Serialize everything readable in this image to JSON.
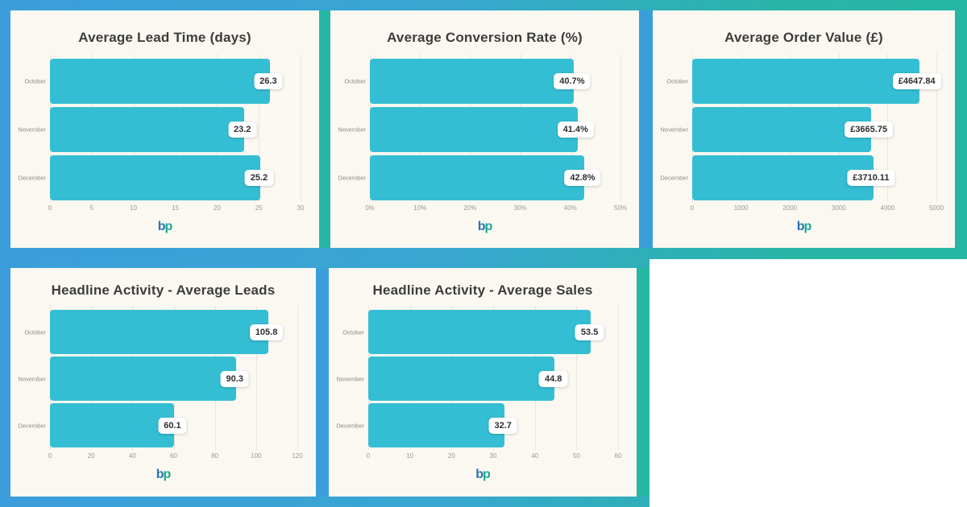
{
  "page": {
    "background_left_color": "#3b9edb",
    "background_right_color": "#26b7a4",
    "empty_cell_color": "#ffffff",
    "card_background": "#faf8f1"
  },
  "logo": {
    "letter_b": "b",
    "letter_p": "p",
    "color_b": "#2a72b8",
    "color_p": "#16ac8c"
  },
  "colors": {
    "bar": "#34bed3",
    "title": "#3d3d3d",
    "gridline": "#e9e6de",
    "tick_label": "#9b988f",
    "category_label": "#8b8b86",
    "value_pill_bg": "#ffffff",
    "value_pill_text": "#2e2e2e"
  },
  "chart_data": [
    {
      "id": "lead-time",
      "type": "bar",
      "orientation": "horizontal",
      "title": "Average Lead Time (days)",
      "categories": [
        "October",
        "November",
        "December"
      ],
      "values": [
        26.3,
        23.2,
        25.2
      ],
      "value_labels": [
        "26.3",
        "23.2",
        "25.2"
      ],
      "xlim": [
        0,
        30
      ],
      "ticks": [
        0,
        5,
        10,
        15,
        20,
        25,
        30
      ],
      "tick_labels": [
        "0",
        "5",
        "10",
        "15",
        "20",
        "25",
        "30"
      ],
      "grid": true,
      "legend": false
    },
    {
      "id": "conversion-rate",
      "type": "bar",
      "orientation": "horizontal",
      "title": "Average Conversion Rate (%)",
      "categories": [
        "October",
        "November",
        "December"
      ],
      "values": [
        40.7,
        41.4,
        42.8
      ],
      "value_labels": [
        "40.7%",
        "41.4%",
        "42.8%"
      ],
      "xlim": [
        0,
        50
      ],
      "ticks": [
        0,
        10,
        20,
        30,
        40,
        50
      ],
      "tick_labels": [
        "0%",
        "10%",
        "20%",
        "30%",
        "40%",
        "50%"
      ],
      "grid": true,
      "legend": false
    },
    {
      "id": "order-value",
      "type": "bar",
      "orientation": "horizontal",
      "title": "Average Order Value (£)",
      "categories": [
        "October",
        "November",
        "December"
      ],
      "values": [
        4647.84,
        3665.75,
        3710.11
      ],
      "value_labels": [
        "£4647.84",
        "£3665.75",
        "£3710.11"
      ],
      "xlim": [
        0,
        5000
      ],
      "ticks": [
        0,
        1000,
        2000,
        3000,
        4000,
        5000
      ],
      "tick_labels": [
        "0",
        "1000",
        "2000",
        "3000",
        "4000",
        "5000"
      ],
      "grid": true,
      "legend": false
    },
    {
      "id": "average-leads",
      "type": "bar",
      "orientation": "horizontal",
      "title": "Headline Activity - Average Leads",
      "categories": [
        "October",
        "November",
        "December"
      ],
      "values": [
        105.8,
        90.3,
        60.1
      ],
      "value_labels": [
        "105.8",
        "90.3",
        "60.1"
      ],
      "xlim": [
        0,
        120
      ],
      "ticks": [
        0,
        20,
        40,
        60,
        80,
        100,
        120
      ],
      "tick_labels": [
        "0",
        "20",
        "40",
        "60",
        "80",
        "100",
        "120"
      ],
      "grid": true,
      "legend": false
    },
    {
      "id": "average-sales",
      "type": "bar",
      "orientation": "horizontal",
      "title": "Headline Activity - Average Sales",
      "categories": [
        "October",
        "November",
        "December"
      ],
      "values": [
        53.5,
        44.8,
        32.7
      ],
      "value_labels": [
        "53.5",
        "44.8",
        "32.7"
      ],
      "xlim": [
        0,
        60
      ],
      "ticks": [
        0,
        10,
        20,
        30,
        40,
        50,
        60
      ],
      "tick_labels": [
        "0",
        "10",
        "20",
        "30",
        "40",
        "50",
        "60"
      ],
      "grid": true,
      "legend": false
    }
  ]
}
